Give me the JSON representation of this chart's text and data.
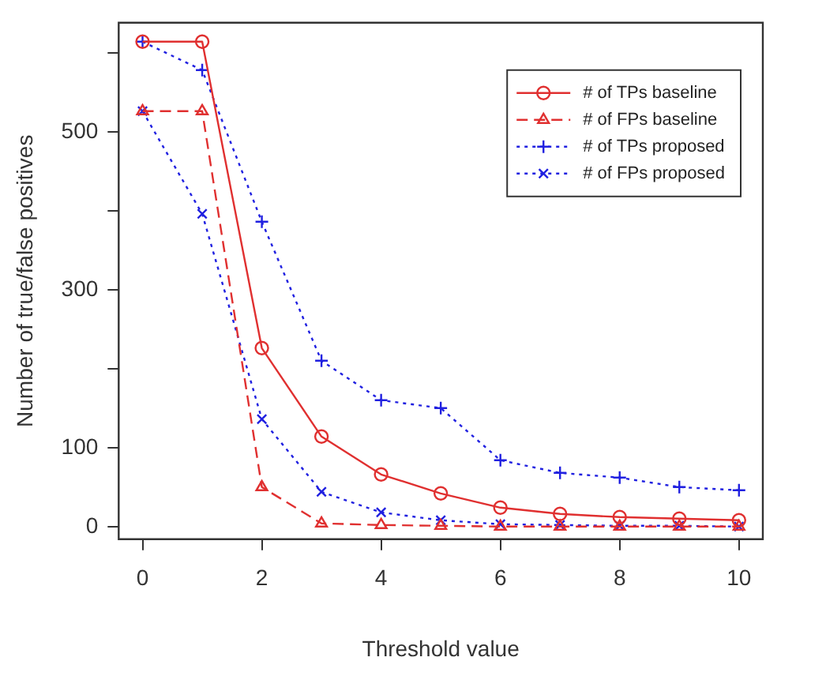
{
  "chart_data": {
    "type": "line",
    "xlabel": "Threshold value",
    "ylabel": "Number of true/false positives",
    "x": [
      0,
      1,
      2,
      3,
      4,
      5,
      6,
      7,
      8,
      9,
      10
    ],
    "series": [
      {
        "name": "# of TPs baseline",
        "color": "#e03030",
        "marker": "circle",
        "line_style": "solid",
        "values": [
          614,
          614,
          226,
          114,
          66,
          42,
          24,
          16,
          12,
          10,
          8
        ]
      },
      {
        "name": "# of FPs baseline",
        "color": "#e03030",
        "marker": "triangle",
        "line_style": "dashed",
        "values": [
          526,
          526,
          50,
          4,
          2,
          1,
          0,
          0,
          0,
          0,
          0
        ]
      },
      {
        "name": "# of TPs proposed",
        "color": "#2020e0",
        "marker": "cross",
        "line_style": "dotted",
        "values": [
          614,
          578,
          386,
          210,
          160,
          150,
          84,
          68,
          62,
          50,
          46
        ]
      },
      {
        "name": "# of FPs proposed",
        "color": "#2020e0",
        "marker": "x",
        "line_style": "dotted",
        "values": [
          526,
          396,
          136,
          44,
          18,
          8,
          3,
          2,
          1,
          1,
          0
        ]
      }
    ],
    "xlim": [
      -0.4,
      10.4
    ],
    "xticks": [
      0,
      2,
      4,
      6,
      8,
      10
    ],
    "ylim": [
      -16,
      638
    ],
    "yticks": [
      0,
      100,
      {
        "value": 200,
        "label": null
      },
      300,
      {
        "value": 400,
        "label": null
      },
      500,
      {
        "value": 600,
        "label": null
      }
    ],
    "grid": false,
    "legend": "top right"
  }
}
